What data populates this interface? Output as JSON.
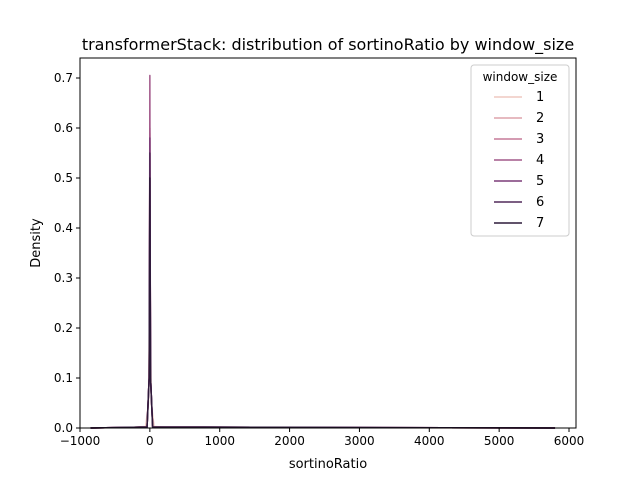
{
  "chart_data": {
    "type": "line",
    "title": "transformerStack: distribution of sortinoRatio by window_size",
    "xlabel": "sortinoRatio",
    "ylabel": "Density",
    "xlim": [
      -1000,
      6100
    ],
    "ylim": [
      0,
      0.74
    ],
    "x_ticks": [
      -1000,
      0,
      1000,
      2000,
      3000,
      4000,
      5000,
      6000
    ],
    "y_ticks": [
      0.0,
      0.1,
      0.2,
      0.3,
      0.4,
      0.5,
      0.6,
      0.7
    ],
    "x_tick_labels": [
      "−1000",
      "0",
      "1000",
      "2000",
      "3000",
      "4000",
      "5000",
      "6000"
    ],
    "y_tick_labels": [
      "0.0",
      "0.1",
      "0.2",
      "0.3",
      "0.4",
      "0.5",
      "0.6",
      "0.7"
    ],
    "grid": false,
    "legend": {
      "title": "window_size",
      "position": "top-right"
    },
    "series": [
      {
        "name": "1",
        "color": "#efc8c0",
        "points": [
          [
            -850,
            0
          ],
          [
            -300,
            0.001
          ],
          [
            -60,
            0.003
          ],
          [
            -20,
            0.05
          ],
          [
            -8,
            0.2
          ],
          [
            0,
            0.4
          ],
          [
            8,
            0.2
          ],
          [
            20,
            0.05
          ],
          [
            60,
            0.003
          ],
          [
            300,
            0.001
          ],
          [
            5800,
            0
          ]
        ]
      },
      {
        "name": "2",
        "color": "#dea3ac",
        "points": [
          [
            -850,
            0
          ],
          [
            -40,
            0.002
          ],
          [
            -10,
            0.1
          ],
          [
            -3,
            0.4
          ],
          [
            0,
            0.59
          ],
          [
            3,
            0.4
          ],
          [
            10,
            0.1
          ],
          [
            40,
            0.002
          ],
          [
            5800,
            0
          ]
        ]
      },
      {
        "name": "3",
        "color": "#c67a99",
        "points": [
          [
            -850,
            0
          ],
          [
            -40,
            0.002
          ],
          [
            -10,
            0.1
          ],
          [
            -3,
            0.4
          ],
          [
            0,
            0.6
          ],
          [
            3,
            0.4
          ],
          [
            10,
            0.1
          ],
          [
            40,
            0.002
          ],
          [
            5800,
            0
          ]
        ]
      },
      {
        "name": "4",
        "color": "#a2588a",
        "points": [
          [
            -850,
            0
          ],
          [
            -40,
            0.002
          ],
          [
            -10,
            0.1
          ],
          [
            -3,
            0.45
          ],
          [
            0,
            0.705
          ],
          [
            3,
            0.45
          ],
          [
            10,
            0.1
          ],
          [
            40,
            0.002
          ],
          [
            5800,
            0
          ]
        ]
      },
      {
        "name": "5",
        "color": "#7b3c78",
        "points": [
          [
            -850,
            0
          ],
          [
            -40,
            0.002
          ],
          [
            -10,
            0.1
          ],
          [
            -3,
            0.4
          ],
          [
            0,
            0.58
          ],
          [
            3,
            0.4
          ],
          [
            10,
            0.1
          ],
          [
            40,
            0.002
          ],
          [
            5800,
            0
          ]
        ]
      },
      {
        "name": "6",
        "color": "#512a5a",
        "points": [
          [
            -850,
            0
          ],
          [
            -40,
            0.002
          ],
          [
            -10,
            0.1
          ],
          [
            -3,
            0.4
          ],
          [
            0,
            0.55
          ],
          [
            3,
            0.4
          ],
          [
            10,
            0.1
          ],
          [
            40,
            0.002
          ],
          [
            5800,
            0
          ]
        ]
      },
      {
        "name": "7",
        "color": "#2d1a3a",
        "points": [
          [
            -850,
            0
          ],
          [
            -40,
            0.002
          ],
          [
            -10,
            0.1
          ],
          [
            -3,
            0.35
          ],
          [
            0,
            0.5
          ],
          [
            3,
            0.35
          ],
          [
            10,
            0.1
          ],
          [
            40,
            0.002
          ],
          [
            5800,
            0
          ]
        ]
      }
    ]
  }
}
